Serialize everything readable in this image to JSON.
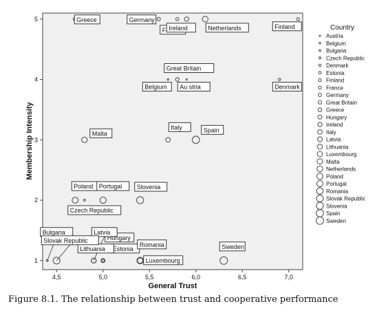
{
  "caption": "Figure 8.1. The relationship between trust and cooperative performance",
  "chart_data": {
    "type": "scatter",
    "xlabel": "General Trust",
    "ylabel": "Membership Intensity",
    "xlim": [
      4.35,
      7.15
    ],
    "ylim": [
      0.85,
      5.1
    ],
    "xticks": [
      4.5,
      5.0,
      5.5,
      6.0,
      6.5,
      7.0
    ],
    "xtick_labels": [
      "4,5",
      "5,0",
      "5,5",
      "6,0",
      "6,5",
      "7,0"
    ],
    "yticks": [
      1,
      2,
      3,
      4,
      5
    ],
    "ytick_labels": [
      "1",
      "2",
      "3",
      "4",
      "5"
    ],
    "grid": false,
    "legend_title": "Country",
    "legend_position": "right",
    "colors": {
      "plot_bg": "#f0f0f0",
      "marker": "#555555"
    },
    "points": [
      {
        "country": "Austria",
        "x": 5.9,
        "y": 4,
        "label": "Au stria"
      },
      {
        "country": "Belgium",
        "x": 5.7,
        "y": 4,
        "label": "Belgium"
      },
      {
        "country": "Bulgaria",
        "x": 4.4,
        "y": 1,
        "label": "Bulgaria"
      },
      {
        "country": "Czech Republic",
        "x": 4.8,
        "y": 2,
        "label": "Czech Republic"
      },
      {
        "country": "Denmark",
        "x": 6.9,
        "y": 4,
        "label": "Denmark"
      },
      {
        "country": "Estonia",
        "x": 5.0,
        "y": 1,
        "label": "Estonia"
      },
      {
        "country": "Finland",
        "x": 7.1,
        "y": 5,
        "label": "Finland"
      },
      {
        "country": "France",
        "x": 5.8,
        "y": 5,
        "label": "France"
      },
      {
        "country": "Germany",
        "x": 5.6,
        "y": 5,
        "label": "Germany"
      },
      {
        "country": "Great Britain",
        "x": 5.8,
        "y": 4,
        "label": "Great Britain"
      },
      {
        "country": "Greece",
        "x": 4.7,
        "y": 5,
        "label": "Greece"
      },
      {
        "country": "Hungary",
        "x": 5.0,
        "y": 1,
        "label": "Hungary"
      },
      {
        "country": "Ireland",
        "x": 5.9,
        "y": 5,
        "label": "Ireland"
      },
      {
        "country": "Italy",
        "x": 5.7,
        "y": 3,
        "label": "Italy"
      },
      {
        "country": "Latvia",
        "x": 4.9,
        "y": 1,
        "label": "Latvia"
      },
      {
        "country": "Lithuania",
        "x": 4.9,
        "y": 1,
        "label": "Lithuania"
      },
      {
        "country": "Luxembourg",
        "x": 5.4,
        "y": 1,
        "label": "Luxembourg"
      },
      {
        "country": "Malta",
        "x": 4.8,
        "y": 3,
        "label": "Malta"
      },
      {
        "country": "Netherlands",
        "x": 6.1,
        "y": 5,
        "label": "Netherlands"
      },
      {
        "country": "Poland",
        "x": 4.7,
        "y": 2,
        "label": "Poland"
      },
      {
        "country": "Portugal",
        "x": 5.0,
        "y": 2,
        "label": "Portugal"
      },
      {
        "country": "Romania",
        "x": 5.4,
        "y": 1,
        "label": "Romania"
      },
      {
        "country": "Slovak Republic",
        "x": 4.5,
        "y": 1,
        "label": "Slovak Republic"
      },
      {
        "country": "Slovenia",
        "x": 5.4,
        "y": 2,
        "label": "Slovenia"
      },
      {
        "country": "Spain",
        "x": 6.0,
        "y": 3,
        "label": "Spain"
      },
      {
        "country": "Sweden",
        "x": 6.3,
        "y": 1,
        "label": "Sweden"
      }
    ],
    "legend": [
      "Austria",
      "Belgium",
      "Bulgaria",
      "Czech Republic",
      "Denmark",
      "Estonia",
      "Finland",
      "France",
      "Germany",
      "Great Britain",
      "Greece",
      "Hungary",
      "Ireland",
      "Italy",
      "Latvia",
      "Lithuania",
      "Luxembourg",
      "Malta",
      "Netherlands",
      "Poland",
      "Portugal",
      "Romania",
      "Slovak Republic",
      "Slovenia",
      "Spain",
      "Sweden"
    ]
  }
}
